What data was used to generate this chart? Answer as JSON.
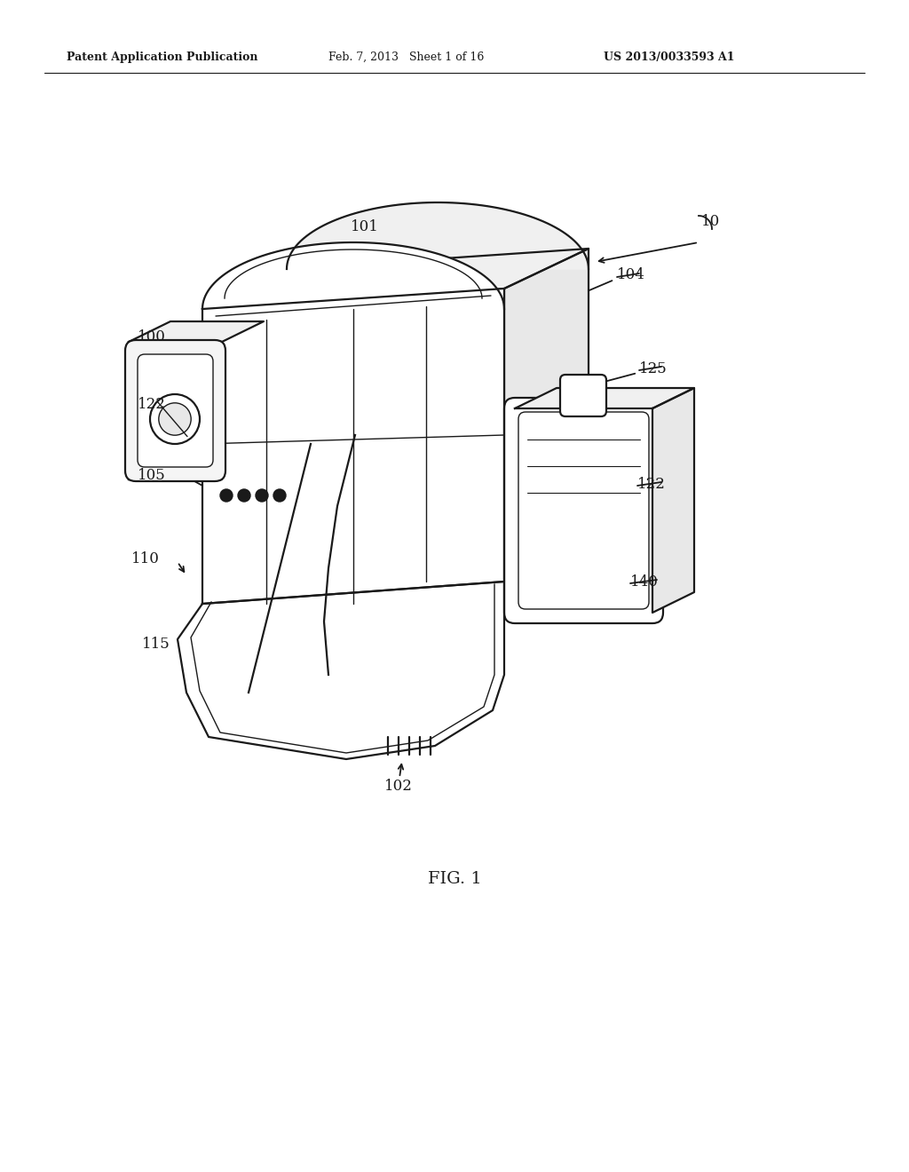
{
  "bg_color": "#ffffff",
  "line_color": "#1a1a1a",
  "text_color": "#1a1a1a",
  "header_left": "Patent Application Publication",
  "header_center": "Feb. 7, 2013   Sheet 1 of 16",
  "header_right": "US 2013/0033593 A1",
  "fig_label": "FIG. 1",
  "lw_main": 1.6,
  "lw_thin": 1.0,
  "lw_detail": 0.8
}
